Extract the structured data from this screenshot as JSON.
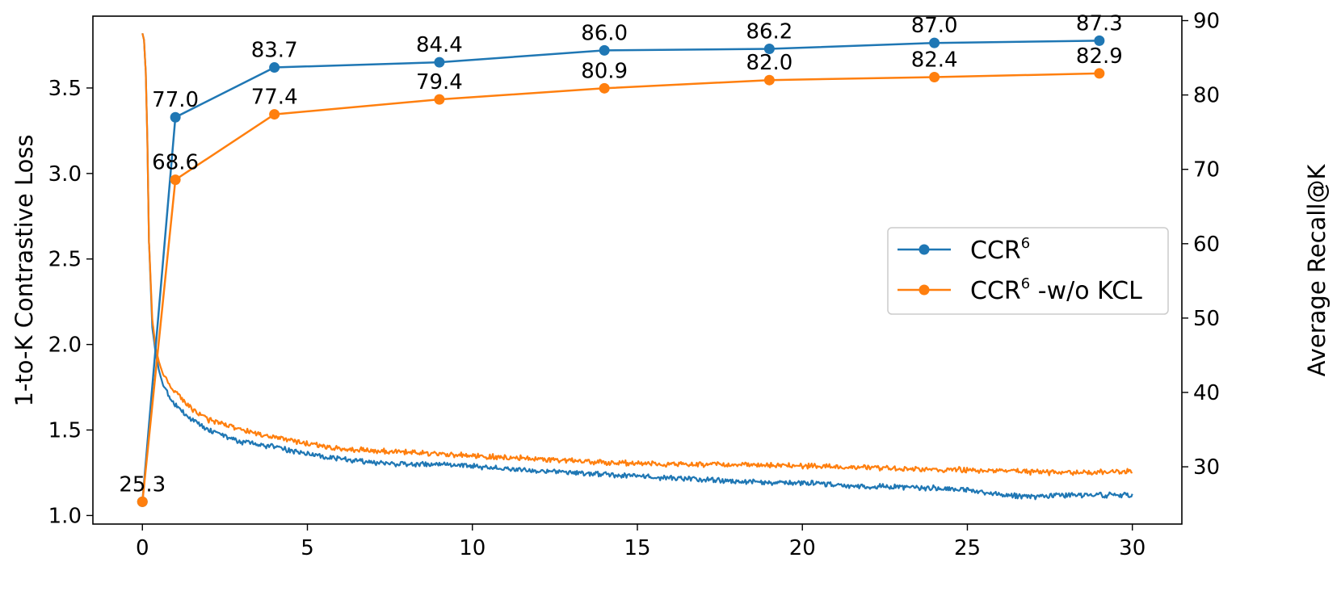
{
  "chart_data": {
    "type": "line",
    "title": "",
    "xlabel": "",
    "ylabel_left": "1-to-K Contrastive Loss",
    "ylabel_right": "Average Recall@K",
    "xlim": [
      -1.5,
      31.5
    ],
    "ylim_left": [
      0.95,
      3.92
    ],
    "ylim_right": [
      22.3,
      90.6
    ],
    "x_ticks": [
      0,
      5,
      10,
      15,
      20,
      25,
      30
    ],
    "y_left_ticks": [
      "1.0",
      "1.5",
      "2.0",
      "2.5",
      "3.0",
      "3.5"
    ],
    "y_right_ticks": [
      "30",
      "40",
      "50",
      "60",
      "70",
      "80",
      "90"
    ],
    "colors": {
      "blue": "#1f77b4",
      "orange": "#ff7f0e"
    },
    "legend": {
      "position": "center-right",
      "entries": [
        {
          "base": "CCR",
          "sup": "6",
          "suffix": ""
        },
        {
          "base": "CCR",
          "sup": "6",
          "suffix": " -w/o KCL"
        }
      ]
    },
    "recall_series": [
      {
        "name": "CCR6",
        "color": "#1f77b4",
        "x": [
          0,
          1,
          4,
          9,
          14,
          19,
          24,
          29
        ],
        "values": [
          25.3,
          77.0,
          83.7,
          84.4,
          86.0,
          86.2,
          87.0,
          87.3
        ],
        "labels": [
          "77.0",
          "83.7",
          "84.4",
          "86.0",
          "86.2",
          "87.0",
          "87.3"
        ]
      },
      {
        "name": "CCR6 -w/o KCL",
        "color": "#ff7f0e",
        "x": [
          0,
          1,
          4,
          9,
          14,
          19,
          24,
          29
        ],
        "values": [
          25.3,
          68.6,
          77.4,
          79.4,
          80.9,
          82.0,
          82.4,
          82.9
        ],
        "labels": [
          "25.3",
          "68.6",
          "77.4",
          "79.4",
          "80.9",
          "82.0",
          "82.4",
          "82.9"
        ]
      }
    ],
    "loss_series": [
      {
        "name": "CCR6 loss",
        "color": "#1f77b4",
        "x": [
          0,
          0.05,
          0.1,
          0.15,
          0.2,
          0.3,
          0.4,
          0.5,
          0.6,
          0.8,
          1,
          1.5,
          2,
          3,
          4,
          5,
          6,
          7,
          8,
          9,
          10,
          12,
          14,
          16,
          18,
          20,
          22,
          24,
          25,
          26,
          27,
          28,
          29,
          30
        ],
        "values": [
          3.82,
          3.78,
          3.6,
          3.2,
          2.6,
          2.1,
          1.95,
          1.85,
          1.78,
          1.7,
          1.65,
          1.56,
          1.5,
          1.43,
          1.4,
          1.36,
          1.33,
          1.31,
          1.3,
          1.3,
          1.29,
          1.26,
          1.24,
          1.22,
          1.2,
          1.19,
          1.17,
          1.16,
          1.15,
          1.12,
          1.11,
          1.12,
          1.12,
          1.12
        ],
        "noise": 0.012
      },
      {
        "name": "CCR6 -w/o KCL loss",
        "color": "#ff7f0e",
        "x": [
          0,
          0.05,
          0.1,
          0.15,
          0.2,
          0.3,
          0.4,
          0.5,
          0.6,
          0.8,
          1,
          1.5,
          2,
          3,
          4,
          5,
          6,
          7,
          8,
          9,
          10,
          12,
          14,
          16,
          18,
          20,
          22,
          24,
          26,
          28,
          30
        ],
        "values": [
          3.82,
          3.78,
          3.6,
          3.2,
          2.6,
          2.15,
          1.98,
          1.9,
          1.84,
          1.77,
          1.72,
          1.62,
          1.56,
          1.5,
          1.46,
          1.42,
          1.39,
          1.38,
          1.37,
          1.36,
          1.35,
          1.33,
          1.31,
          1.3,
          1.3,
          1.29,
          1.28,
          1.27,
          1.26,
          1.25,
          1.26
        ],
        "noise": 0.012
      }
    ]
  }
}
